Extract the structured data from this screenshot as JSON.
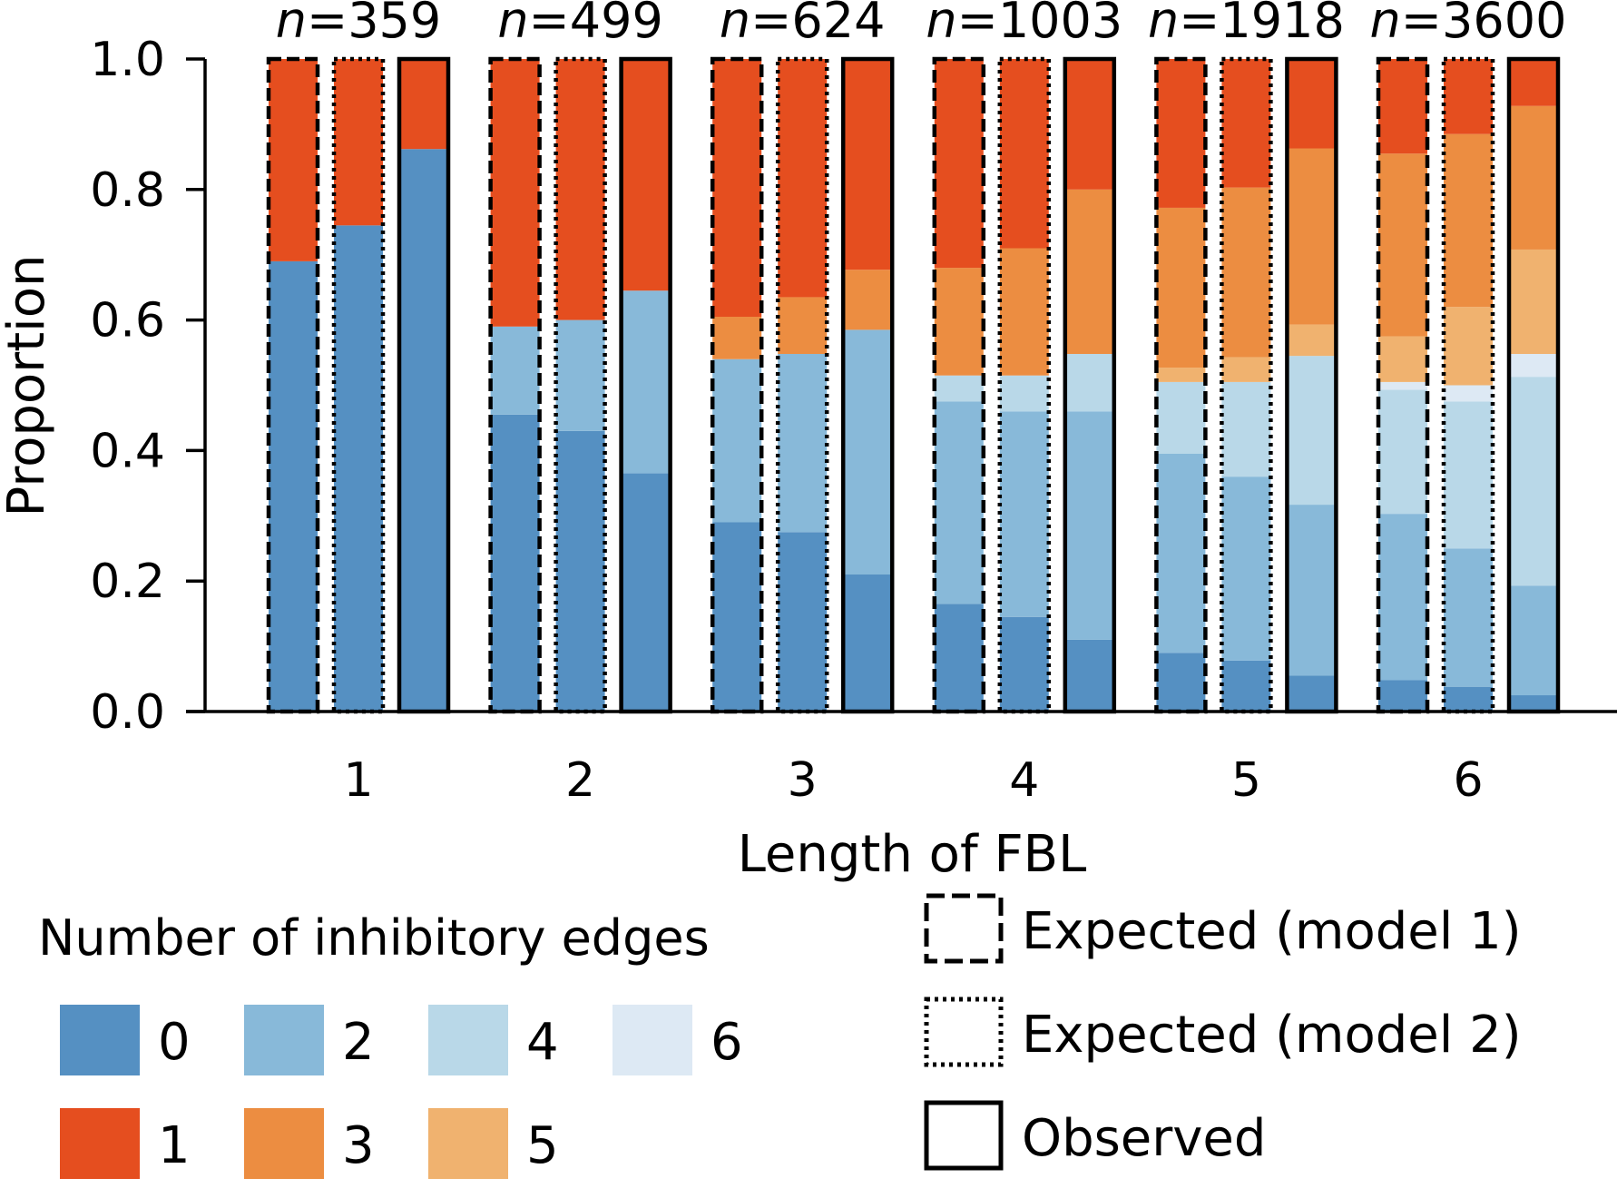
{
  "chart_data": {
    "type": "bar",
    "subtype": "stacked-proportion",
    "xlabel": "Length of FBL",
    "ylabel": "Proportion",
    "ylim": [
      0,
      1.0
    ],
    "yticks": [
      "0.0",
      "0.2",
      "0.4",
      "0.6",
      "0.8",
      "1.0"
    ],
    "categories": [
      "1",
      "2",
      "3",
      "4",
      "5",
      "6"
    ],
    "n_prefix": "n",
    "n_values": [
      "359",
      "499",
      "624",
      "1003",
      "1918",
      "3600"
    ],
    "bar_types": [
      {
        "key": "model1",
        "label": "Expected (model 1)",
        "border": "dashed"
      },
      {
        "key": "model2",
        "label": "Expected (model 2)",
        "border": "dotted"
      },
      {
        "key": "observed",
        "label": "Observed",
        "border": "solid"
      }
    ],
    "edge_legend_title": "Number of inhibitory edges",
    "edge_classes": [
      {
        "label": "0",
        "color": "#5590c2"
      },
      {
        "label": "1",
        "color": "#e54e1f"
      },
      {
        "label": "2",
        "color": "#88b9d9"
      },
      {
        "label": "3",
        "color": "#ec8d41"
      },
      {
        "label": "4",
        "color": "#b9d8e8"
      },
      {
        "label": "5",
        "color": "#f0b26f"
      },
      {
        "label": "6",
        "color": "#dde9f4"
      }
    ],
    "stack_order": [
      "0",
      "2",
      "4",
      "6",
      "5",
      "3",
      "1"
    ],
    "groups": [
      {
        "category": "1",
        "n": "359",
        "bars": {
          "model1": {
            "0": 0.69,
            "1": 0.31
          },
          "model2": {
            "0": 0.745,
            "1": 0.255
          },
          "observed": {
            "0": 0.862,
            "1": 0.138
          }
        }
      },
      {
        "category": "2",
        "n": "499",
        "bars": {
          "model1": {
            "0": 0.455,
            "2": 0.135,
            "1": 0.41
          },
          "model2": {
            "0": 0.43,
            "2": 0.17,
            "1": 0.4
          },
          "observed": {
            "0": 0.365,
            "2": 0.28,
            "1": 0.355
          }
        }
      },
      {
        "category": "3",
        "n": "624",
        "bars": {
          "model1": {
            "0": 0.29,
            "2": 0.25,
            "3": 0.065,
            "1": 0.395
          },
          "model2": {
            "0": 0.275,
            "2": 0.273,
            "3": 0.087,
            "1": 0.365
          },
          "observed": {
            "0": 0.21,
            "2": 0.375,
            "3": 0.092,
            "1": 0.323
          }
        }
      },
      {
        "category": "4",
        "n": "1003",
        "bars": {
          "model1": {
            "0": 0.165,
            "2": 0.31,
            "4": 0.04,
            "3": 0.165,
            "1": 0.32
          },
          "model2": {
            "0": 0.145,
            "2": 0.315,
            "4": 0.055,
            "3": 0.195,
            "1": 0.29
          },
          "observed": {
            "0": 0.11,
            "2": 0.35,
            "4": 0.088,
            "3": 0.252,
            "1": 0.2
          }
        }
      },
      {
        "category": "5",
        "n": "1918",
        "bars": {
          "model1": {
            "0": 0.09,
            "2": 0.305,
            "4": 0.11,
            "5": 0.022,
            "3": 0.245,
            "1": 0.228
          },
          "model2": {
            "0": 0.078,
            "2": 0.282,
            "4": 0.145,
            "5": 0.038,
            "3": 0.26,
            "1": 0.197
          },
          "observed": {
            "0": 0.055,
            "2": 0.262,
            "4": 0.228,
            "5": 0.048,
            "3": 0.27,
            "1": 0.137
          }
        }
      },
      {
        "category": "6",
        "n": "3600",
        "bars": {
          "model1": {
            "0": 0.048,
            "2": 0.255,
            "4": 0.19,
            "6": 0.012,
            "5": 0.07,
            "3": 0.28,
            "1": 0.145
          },
          "model2": {
            "0": 0.038,
            "2": 0.212,
            "4": 0.225,
            "6": 0.025,
            "5": 0.12,
            "3": 0.265,
            "1": 0.115
          },
          "observed": {
            "0": 0.025,
            "2": 0.168,
            "4": 0.32,
            "6": 0.035,
            "5": 0.16,
            "3": 0.22,
            "1": 0.072
          }
        }
      }
    ]
  }
}
